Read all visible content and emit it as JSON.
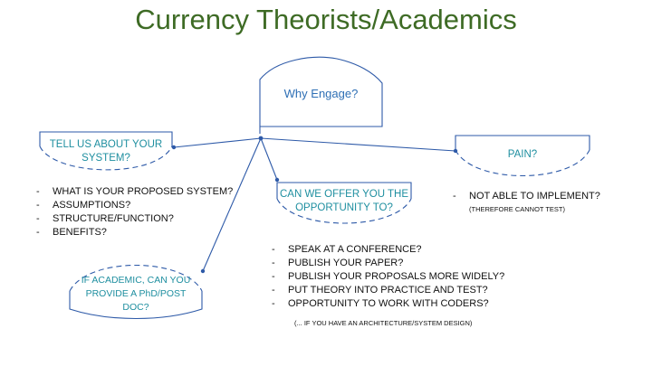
{
  "title": "Currency Theorists/Academics",
  "hub": {
    "label": "Why Engage?"
  },
  "nodes": {
    "system": {
      "label": "TELL US ABOUT YOUR SYSTEM?"
    },
    "pain": {
      "label": "PAIN?"
    },
    "offer": {
      "label": "CAN WE OFFER YOU THE OPPORTUNITY TO?"
    },
    "academic": {
      "label": "IF ACADEMIC, CAN YOU PROVIDE A PhD/POST DOC?"
    }
  },
  "lists": {
    "system_questions": [
      "WHAT IS YOUR PROPOSED SYSTEM?",
      "ASSUMPTIONS?",
      "STRUCTURE/FUNCTION?",
      "BENEFITS?"
    ],
    "pain_points": [
      "NOT ABLE TO IMPLEMENT?"
    ],
    "pain_note": "(THEREFORE CANNOT TEST)",
    "opportunities": [
      "SPEAK AT A CONFERENCE?",
      "PUBLISH YOUR PAPER?",
      "PUBLISH YOUR PROPOSALS MORE WIDELY?",
      "PUT THEORY INTO PRACTICE AND TEST?",
      "OPPORTUNITY TO WORK WITH CODERS?"
    ],
    "opportunities_note": "(... IF YOU HAVE AN ARCHITECTURE/SYSTEM DESIGN)"
  },
  "colors": {
    "title": "#3e6b25",
    "lines": "#2e5aa8",
    "node_text": "#1f8fa0",
    "hub_text": "#2e6fb5"
  }
}
